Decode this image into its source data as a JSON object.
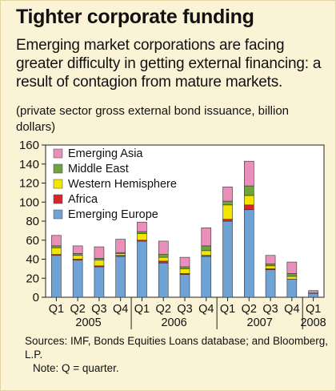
{
  "panel": {
    "title": "Tighter corporate funding",
    "subtitle": "Emerging market corporations are facing greater difficulty in getting external financing: a result of contagion from mature markets.",
    "units_note": "(private sector gross external bond issuance, billion dollars)",
    "sources": "Sources: IMF, Bonds Equities Loans database; and Bloomberg, L.P.",
    "note": "Note: Q =  quarter."
  },
  "chart_data": {
    "type": "bar",
    "stacked": true,
    "categories": [
      "Q1",
      "Q2",
      "Q3",
      "Q4",
      "Q1",
      "Q2",
      "Q3",
      "Q4",
      "Q1",
      "Q2",
      "Q3",
      "Q4",
      "Q1"
    ],
    "years": [
      {
        "label": "2005",
        "from": 0,
        "to": 3
      },
      {
        "label": "2006",
        "from": 4,
        "to": 7
      },
      {
        "label": "2007",
        "from": 8,
        "to": 11
      },
      {
        "label": "2008",
        "from": 12,
        "to": 12
      }
    ],
    "ylim": [
      0,
      160
    ],
    "yticks": [
      0,
      20,
      40,
      60,
      80,
      100,
      120,
      140,
      160
    ],
    "grid": false,
    "legend_position": "top-left",
    "series": [
      {
        "name": "Emerging Europe",
        "color": "#6fa3d6",
        "values": [
          44,
          39,
          32,
          43,
          59,
          36,
          24,
          43,
          80,
          92,
          29,
          19,
          4
        ]
      },
      {
        "name": "Africa",
        "color": "#d9262b",
        "values": [
          1,
          1,
          1,
          1,
          1,
          2,
          1,
          1,
          2,
          5,
          1,
          0,
          0
        ]
      },
      {
        "name": "Western Hemisphere",
        "color": "#f2e600",
        "values": [
          7,
          4,
          6,
          2,
          7,
          4,
          5,
          5,
          15,
          10,
          3,
          3,
          1
        ]
      },
      {
        "name": "Middle East",
        "color": "#6fa33b",
        "values": [
          2,
          2,
          2,
          1,
          2,
          3,
          2,
          5,
          4,
          10,
          2,
          3,
          0
        ]
      },
      {
        "name": "Emerging Asia",
        "color": "#e98fb9",
        "values": [
          11,
          8,
          12,
          14,
          10,
          14,
          10,
          19,
          15,
          26,
          9,
          12,
          2
        ]
      }
    ]
  }
}
